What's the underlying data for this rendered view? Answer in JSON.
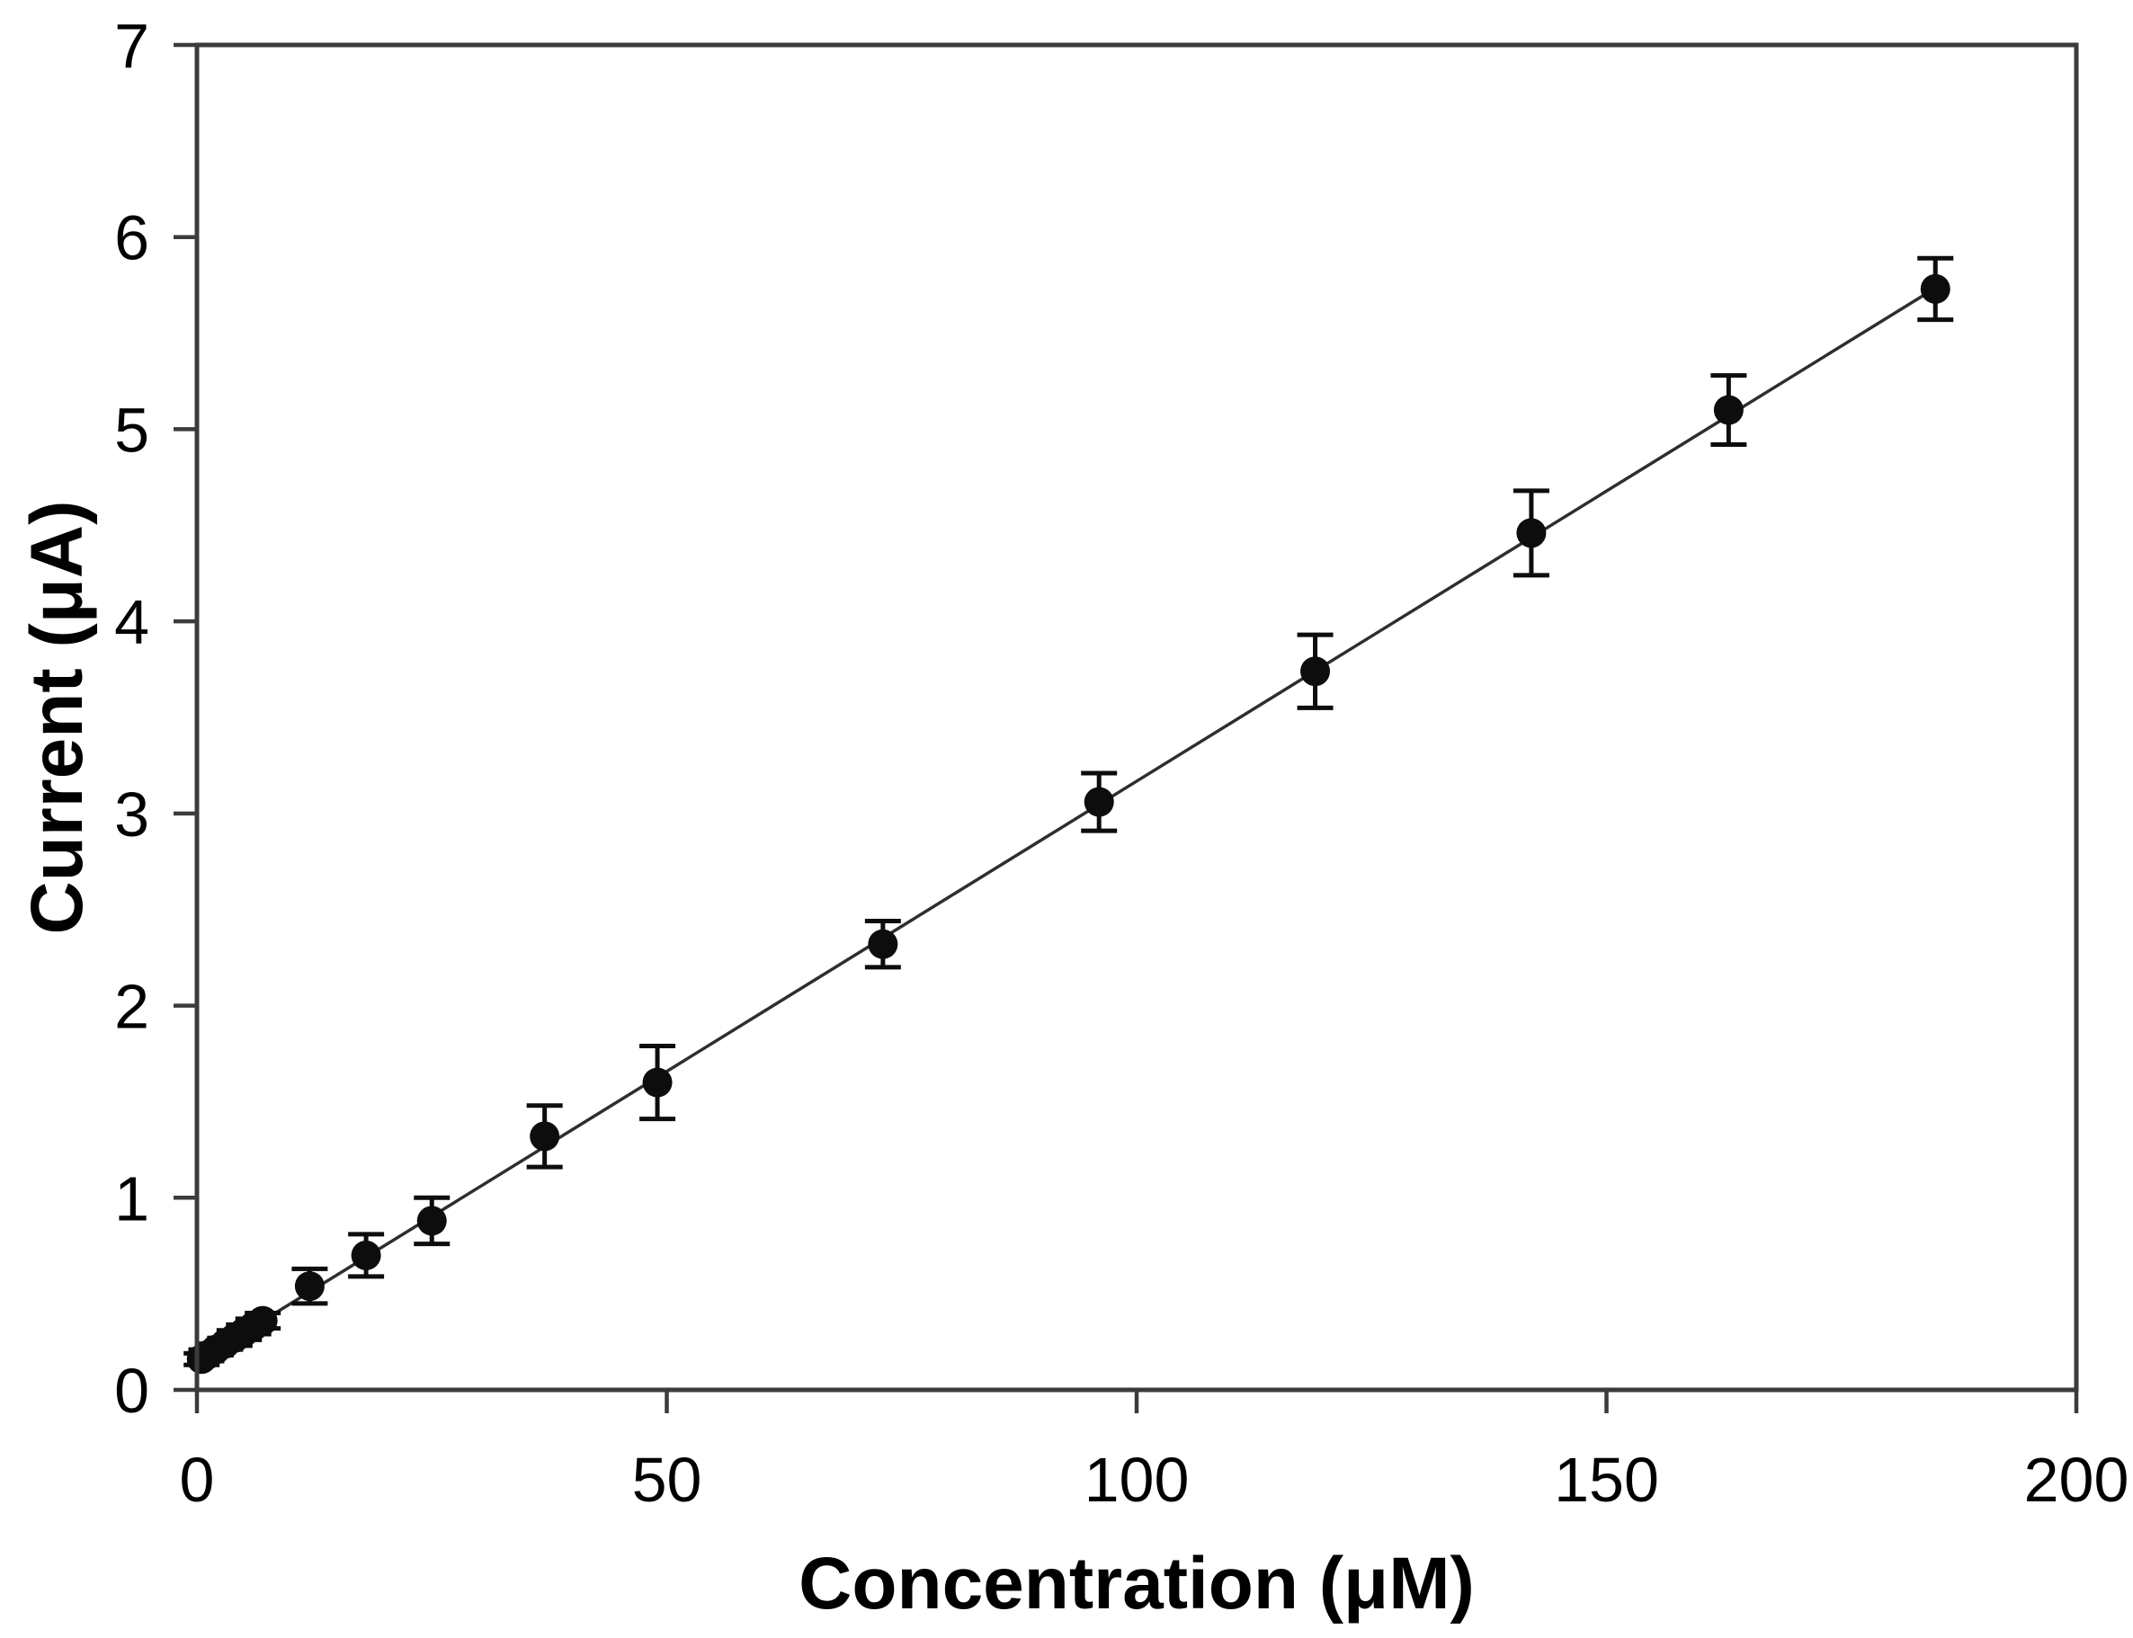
{
  "chart_data": {
    "type": "scatter",
    "title": "",
    "xlabel": "Concentration (μM)",
    "ylabel": "Current (μA)",
    "xlim": [
      0,
      200
    ],
    "ylim": [
      0,
      7
    ],
    "x_ticks": [
      0,
      50,
      100,
      150,
      200
    ],
    "x_tick_labels": [
      "0",
      "50",
      "100",
      "150",
      "200"
    ],
    "y_ticks": [
      0,
      1,
      2,
      3,
      4,
      5,
      6,
      7
    ],
    "y_tick_labels": [
      "0",
      "1",
      "2",
      "3",
      "4",
      "5",
      "6",
      "7"
    ],
    "grid": false,
    "legend": null,
    "marker_shape": "filled-circle",
    "error_bars": "vertical",
    "marker_color": "#0d0d0d",
    "line_color": "#2e2e2e",
    "axis_color": "#3b3b3b",
    "text_color": "#000000",
    "points": [
      {
        "x": 0.5,
        "y": 0.16,
        "err": 0.03
      },
      {
        "x": 1,
        "y": 0.18,
        "err": 0.03
      },
      {
        "x": 2,
        "y": 0.21,
        "err": 0.03
      },
      {
        "x": 3,
        "y": 0.24,
        "err": 0.03
      },
      {
        "x": 4,
        "y": 0.27,
        "err": 0.04
      },
      {
        "x": 5,
        "y": 0.3,
        "err": 0.04
      },
      {
        "x": 6,
        "y": 0.33,
        "err": 0.04
      },
      {
        "x": 7,
        "y": 0.36,
        "err": 0.04
      },
      {
        "x": 12,
        "y": 0.54,
        "err": 0.09
      },
      {
        "x": 18,
        "y": 0.7,
        "err": 0.11
      },
      {
        "x": 25,
        "y": 0.88,
        "err": 0.12
      },
      {
        "x": 37,
        "y": 1.32,
        "err": 0.16
      },
      {
        "x": 49,
        "y": 1.6,
        "err": 0.19
      },
      {
        "x": 73,
        "y": 2.32,
        "err": 0.12
      },
      {
        "x": 96,
        "y": 3.06,
        "err": 0.15
      },
      {
        "x": 119,
        "y": 3.74,
        "err": 0.19
      },
      {
        "x": 142,
        "y": 4.46,
        "err": 0.22
      },
      {
        "x": 163,
        "y": 5.1,
        "err": 0.18
      },
      {
        "x": 185,
        "y": 5.73,
        "err": 0.16
      }
    ],
    "fit_line": {
      "slope": 0.0302,
      "intercept": 0.148,
      "x_start": 0.5,
      "x_end": 185
    }
  }
}
